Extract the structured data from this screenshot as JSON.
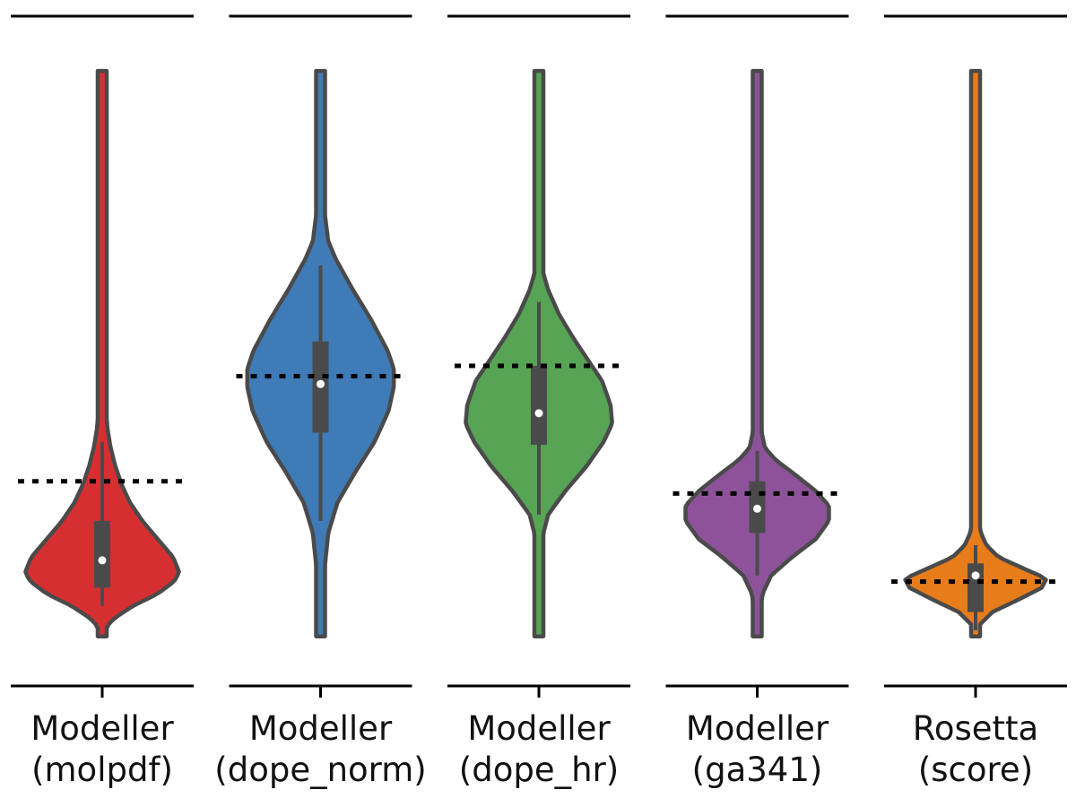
{
  "chart_data": {
    "type": "violin",
    "title": "",
    "xlabel": "",
    "ylabel": "",
    "ylim": [
      0,
      1
    ],
    "y_axis_visible": false,
    "grid": false,
    "legend": "none",
    "series": [
      {
        "label_lines": [
          "Modeller",
          "(molpdf)"
        ],
        "color": "#d62f31",
        "min": 0.03,
        "max": 0.96,
        "q1": 0.11,
        "median": 0.155,
        "q3": 0.22,
        "whisker_low": 0.08,
        "whisker_high": 0.35,
        "reference": 0.285,
        "density": [
          [
            0.03,
            0.02
          ],
          [
            0.045,
            0.05
          ],
          [
            0.06,
            0.16
          ],
          [
            0.08,
            0.4
          ],
          [
            0.1,
            0.72
          ],
          [
            0.12,
            0.93
          ],
          [
            0.135,
            1.0
          ],
          [
            0.16,
            0.92
          ],
          [
            0.19,
            0.72
          ],
          [
            0.22,
            0.52
          ],
          [
            0.25,
            0.36
          ],
          [
            0.28,
            0.25
          ],
          [
            0.31,
            0.17
          ],
          [
            0.34,
            0.11
          ],
          [
            0.37,
            0.07
          ],
          [
            0.4,
            0.05
          ],
          [
            0.45,
            0.035
          ],
          [
            0.52,
            0.027
          ],
          [
            0.62,
            0.022
          ],
          [
            0.75,
            0.02
          ],
          [
            0.85,
            0.02
          ],
          [
            0.96,
            0.015
          ]
        ]
      },
      {
        "label_lines": [
          "Modeller",
          "(dope_norm)"
        ],
        "color": "#3f7bb6",
        "min": 0.03,
        "max": 0.96,
        "q1": 0.365,
        "median": 0.445,
        "q3": 0.515,
        "whisker_low": 0.22,
        "whisker_high": 0.64,
        "reference": 0.458,
        "density": [
          [
            0.03,
            0.03
          ],
          [
            0.1,
            0.04
          ],
          [
            0.15,
            0.06
          ],
          [
            0.2,
            0.1
          ],
          [
            0.25,
            0.22
          ],
          [
            0.3,
            0.45
          ],
          [
            0.35,
            0.7
          ],
          [
            0.4,
            0.88
          ],
          [
            0.44,
            0.95
          ],
          [
            0.47,
            0.95
          ],
          [
            0.5,
            0.87
          ],
          [
            0.55,
            0.66
          ],
          [
            0.6,
            0.42
          ],
          [
            0.65,
            0.2
          ],
          [
            0.68,
            0.1
          ],
          [
            0.72,
            0.06
          ],
          [
            0.76,
            0.05
          ],
          [
            0.8,
            0.03
          ],
          [
            0.85,
            0.025
          ],
          [
            0.96,
            0.02
          ]
        ]
      },
      {
        "label_lines": [
          "Modeller",
          "(dope_hr)"
        ],
        "color": "#56a454",
        "min": 0.03,
        "max": 0.96,
        "q1": 0.345,
        "median": 0.397,
        "q3": 0.475,
        "whisker_low": 0.23,
        "whisker_high": 0.58,
        "reference": 0.475,
        "density": [
          [
            0.03,
            0.03
          ],
          [
            0.1,
            0.03
          ],
          [
            0.15,
            0.04
          ],
          [
            0.2,
            0.06
          ],
          [
            0.23,
            0.12
          ],
          [
            0.27,
            0.35
          ],
          [
            0.31,
            0.62
          ],
          [
            0.35,
            0.84
          ],
          [
            0.38,
            0.95
          ],
          [
            0.41,
            0.93
          ],
          [
            0.45,
            0.82
          ],
          [
            0.48,
            0.66
          ],
          [
            0.52,
            0.45
          ],
          [
            0.56,
            0.26
          ],
          [
            0.6,
            0.12
          ],
          [
            0.63,
            0.05
          ],
          [
            0.66,
            0.04
          ],
          [
            0.7,
            0.03
          ],
          [
            0.8,
            0.025
          ],
          [
            0.96,
            0.02
          ]
        ]
      },
      {
        "label_lines": [
          "Modeller",
          "(ga341)"
        ],
        "color": "#8e529a",
        "min": 0.03,
        "max": 0.96,
        "q1": 0.2,
        "median": 0.24,
        "q3": 0.285,
        "whisker_low": 0.13,
        "whisker_high": 0.335,
        "reference": 0.265,
        "density": [
          [
            0.03,
            0.03
          ],
          [
            0.07,
            0.04
          ],
          [
            0.1,
            0.07
          ],
          [
            0.13,
            0.18
          ],
          [
            0.16,
            0.45
          ],
          [
            0.19,
            0.76
          ],
          [
            0.22,
            0.93
          ],
          [
            0.245,
            0.93
          ],
          [
            0.27,
            0.75
          ],
          [
            0.3,
            0.45
          ],
          [
            0.32,
            0.24
          ],
          [
            0.34,
            0.1
          ],
          [
            0.37,
            0.05
          ],
          [
            0.42,
            0.035
          ],
          [
            0.5,
            0.03
          ],
          [
            0.6,
            0.025
          ],
          [
            0.75,
            0.02
          ],
          [
            0.96,
            0.02
          ]
        ]
      },
      {
        "label_lines": [
          "Rosetta",
          "(score)"
        ],
        "color": "#e67c1a",
        "min": 0.03,
        "max": 0.96,
        "q1": 0.07,
        "median": 0.13,
        "q3": 0.15,
        "whisker_low": 0.04,
        "whisker_high": 0.18,
        "reference": 0.12,
        "density": [
          [
            0.03,
            0.03
          ],
          [
            0.05,
            0.06
          ],
          [
            0.07,
            0.22
          ],
          [
            0.09,
            0.55
          ],
          [
            0.11,
            0.86
          ],
          [
            0.125,
            0.92
          ],
          [
            0.14,
            0.65
          ],
          [
            0.16,
            0.3
          ],
          [
            0.18,
            0.14
          ],
          [
            0.2,
            0.07
          ],
          [
            0.22,
            0.045
          ],
          [
            0.25,
            0.035
          ],
          [
            0.27,
            0.05
          ],
          [
            0.28,
            0.035
          ],
          [
            0.31,
            0.03
          ],
          [
            0.4,
            0.025
          ],
          [
            0.55,
            0.02
          ],
          [
            0.75,
            0.02
          ],
          [
            0.96,
            0.015
          ]
        ]
      }
    ]
  }
}
